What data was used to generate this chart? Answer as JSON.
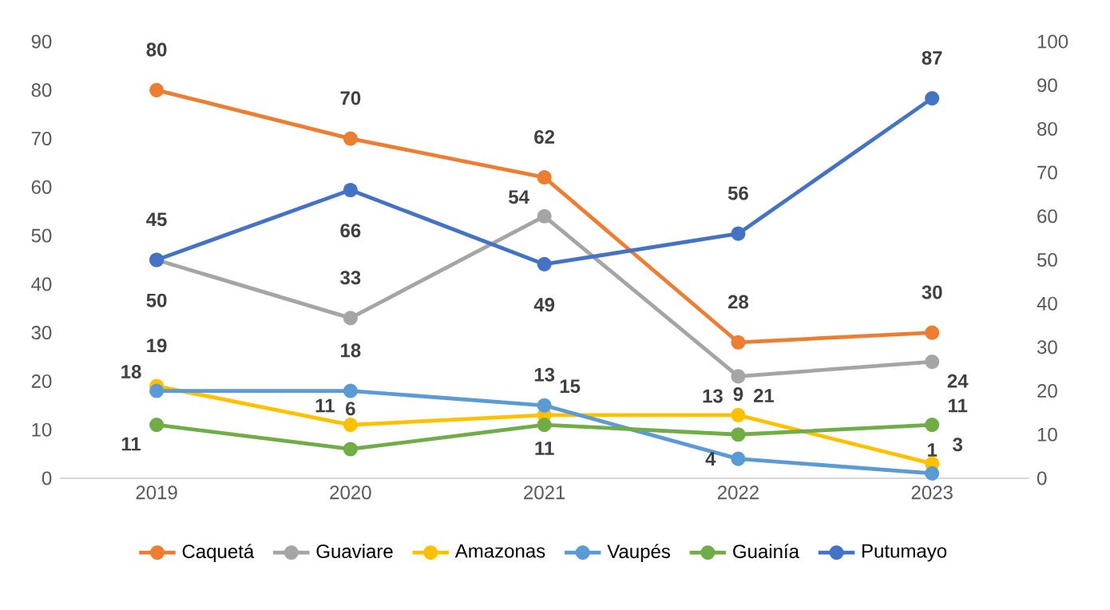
{
  "chart_data": {
    "type": "line",
    "categories": [
      "2019",
      "2020",
      "2021",
      "2022",
      "2023"
    ],
    "series": [
      {
        "name": "Caquetá",
        "color": "#ed7d31",
        "values": [
          80,
          70,
          62,
          28,
          30
        ]
      },
      {
        "name": "Guaviare",
        "color": "#a5a5a5",
        "values": [
          45,
          33,
          54,
          21,
          24
        ]
      },
      {
        "name": "Amazonas",
        "color": "#ffc000",
        "values": [
          19,
          11,
          13,
          13,
          3
        ]
      },
      {
        "name": "Vaupés",
        "color": "#5b9bd5",
        "values": [
          18,
          18,
          15,
          4,
          1
        ]
      },
      {
        "name": "Guainía",
        "color": "#70ad47",
        "values": [
          11,
          6,
          11,
          9,
          11
        ]
      },
      {
        "name": "Putumayo",
        "color": "#4472c4",
        "values": [
          50,
          66,
          49,
          56,
          87
        ],
        "axis": "y2"
      }
    ],
    "ylim": [
      0,
      90
    ],
    "yticks": [
      0,
      10,
      20,
      30,
      40,
      50,
      60,
      70,
      80,
      90
    ],
    "y2lim": [
      0,
      100
    ],
    "y2ticks": [
      0,
      10,
      20,
      30,
      40,
      50,
      60,
      70,
      80,
      90,
      100
    ],
    "data_labels": true,
    "legend": "bottom",
    "grid": false,
    "marker": "circle",
    "line_style": "solid"
  }
}
